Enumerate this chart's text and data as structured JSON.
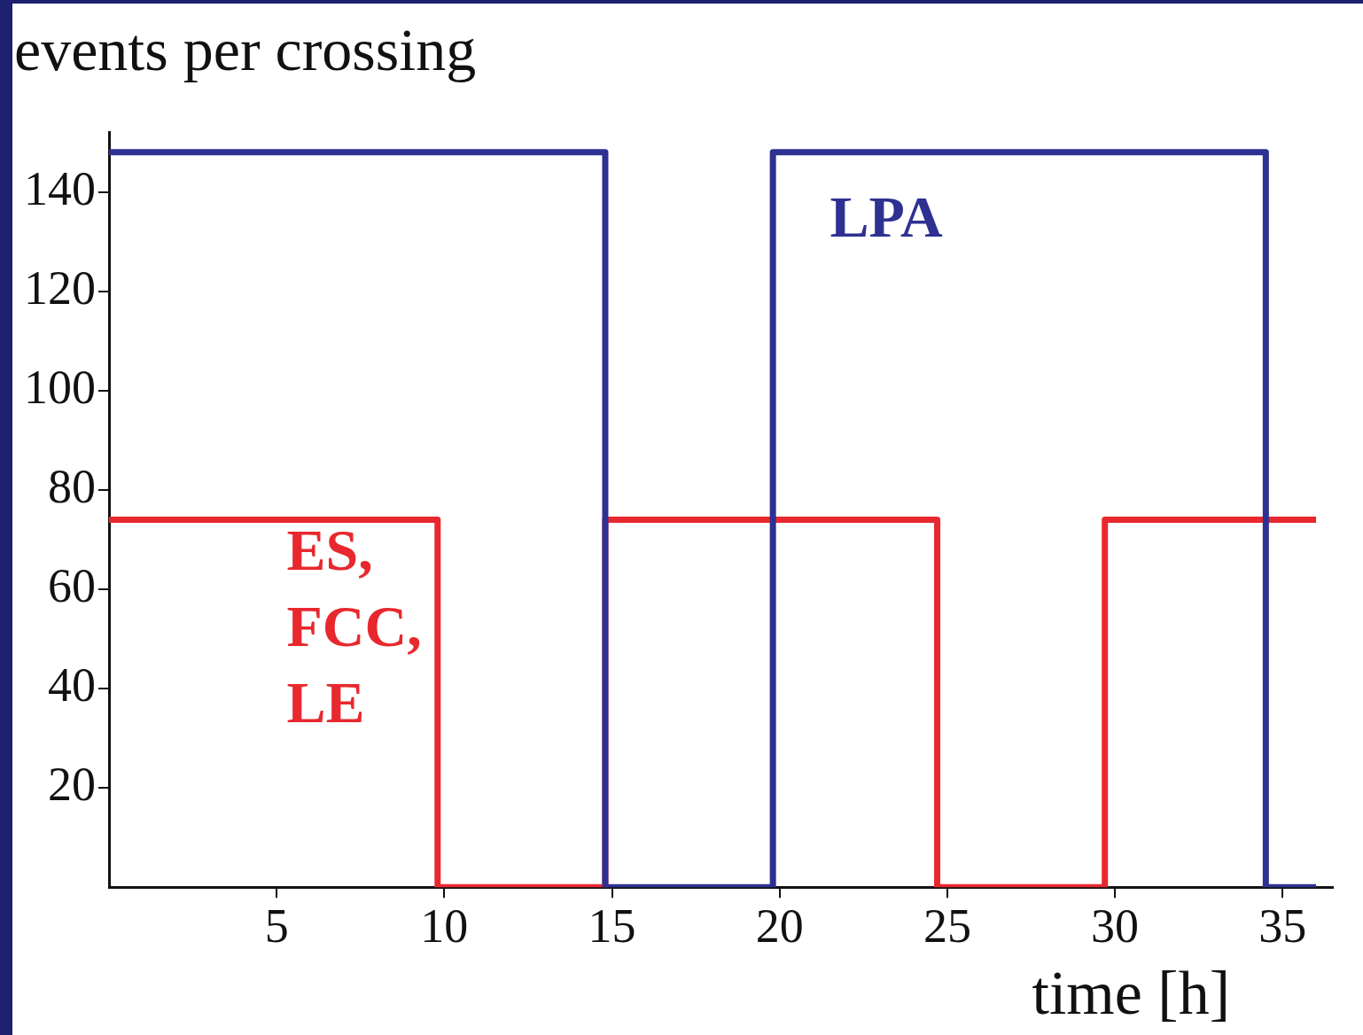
{
  "chart_data": {
    "type": "step",
    "title": "events per crossing",
    "xlabel": "time [h]",
    "series": [
      {
        "name": "LPA",
        "color": "#2e3192",
        "x": [
          0,
          14.8,
          19.8,
          34.5,
          36
        ],
        "values": [
          148,
          0,
          148,
          0,
          0
        ]
      },
      {
        "name": "ES, FCC, LE",
        "color": "#e8282e",
        "x": [
          0,
          9.8,
          14.8,
          24.7,
          29.7,
          36
        ],
        "values": [
          74,
          0,
          74,
          0,
          74,
          74
        ]
      }
    ],
    "xlim": [
      0,
      36.5
    ],
    "ylim": [
      0,
      152
    ],
    "xticks": [
      5,
      10,
      15,
      20,
      25,
      30,
      35
    ],
    "yticks": [
      20,
      40,
      60,
      80,
      100,
      120,
      140
    ],
    "grid": false,
    "legend": false,
    "marker": "none",
    "line_style": "solid"
  }
}
